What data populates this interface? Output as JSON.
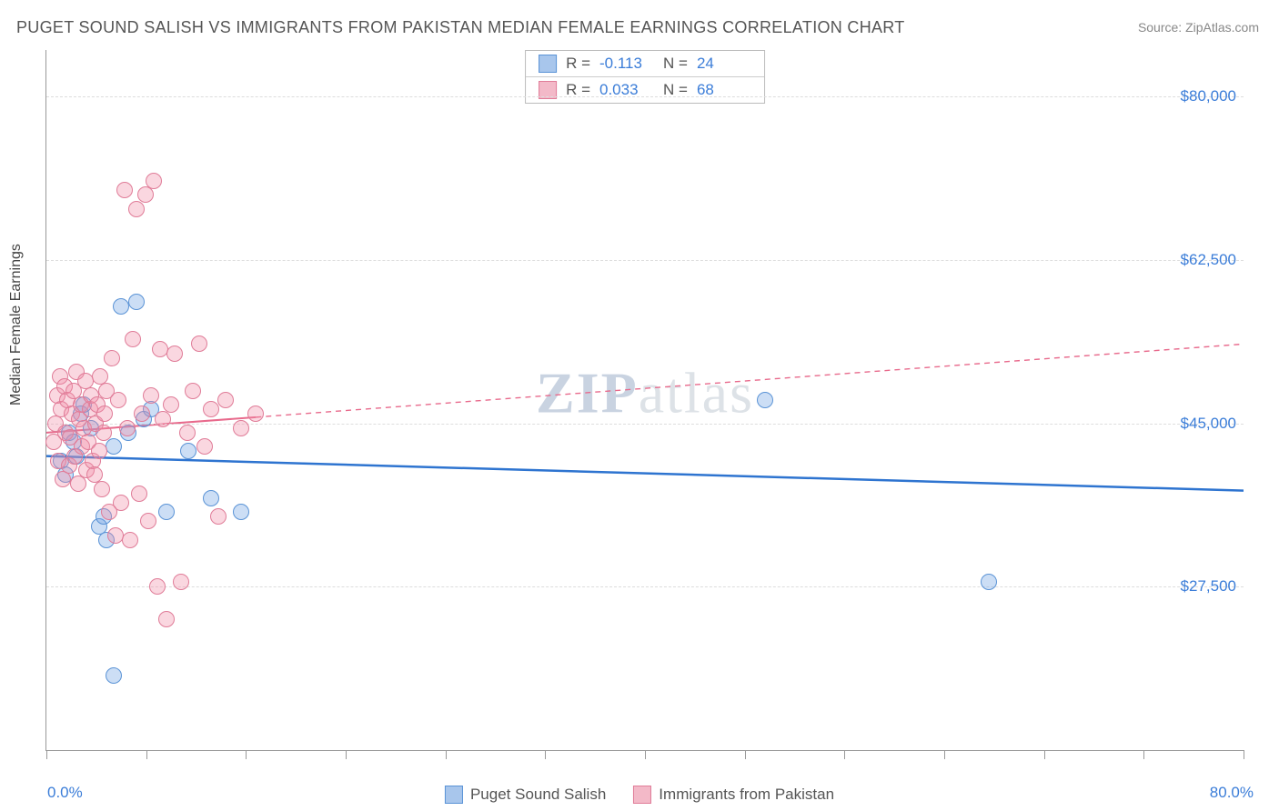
{
  "title": "PUGET SOUND SALISH VS IMMIGRANTS FROM PAKISTAN MEDIAN FEMALE EARNINGS CORRELATION CHART",
  "source": "Source: ZipAtlas.com",
  "watermark_a": "ZIP",
  "watermark_b": "atlas",
  "chart": {
    "type": "scatter",
    "y_axis_title": "Median Female Earnings",
    "x_min": 0.0,
    "x_max": 80.0,
    "x_label_min": "0.0%",
    "x_label_max": "80.0%",
    "x_ticks": [
      0,
      6.67,
      13.33,
      20,
      26.67,
      33.33,
      40,
      46.67,
      53.33,
      60,
      66.67,
      73.33,
      80
    ],
    "y_min": 10000,
    "y_max": 85000,
    "y_gridlines": [
      {
        "value": 27500,
        "label": "$27,500"
      },
      {
        "value": 45000,
        "label": "$45,000"
      },
      {
        "value": 62500,
        "label": "$62,500"
      },
      {
        "value": 80000,
        "label": "$80,000"
      }
    ],
    "marker_radius": 8,
    "marker_stroke_width": 1.2,
    "series": [
      {
        "name": "Puget Sound Salish",
        "fill": "rgba(110,160,225,0.35)",
        "stroke": "#5a93d6",
        "swatch_fill": "#a8c6ec",
        "swatch_border": "#5a93d6",
        "r_value": "-0.113",
        "n_value": "24",
        "trend": {
          "x1": 0,
          "y1": 41500,
          "x2": 80,
          "y2": 37800,
          "solid_until_x": 80,
          "color": "#2e74d0",
          "width": 2.5,
          "dash": ""
        },
        "points": [
          [
            1.0,
            41000
          ],
          [
            1.3,
            39500
          ],
          [
            1.5,
            44000
          ],
          [
            1.8,
            43000
          ],
          [
            2.0,
            41500
          ],
          [
            2.3,
            46000
          ],
          [
            2.5,
            47000
          ],
          [
            3.0,
            44500
          ],
          [
            3.5,
            34000
          ],
          [
            3.8,
            35000
          ],
          [
            4.0,
            32500
          ],
          [
            4.5,
            42500
          ],
          [
            5.0,
            57500
          ],
          [
            5.5,
            44000
          ],
          [
            6.0,
            58000
          ],
          [
            6.5,
            45500
          ],
          [
            7.0,
            46500
          ],
          [
            8.0,
            35500
          ],
          [
            9.5,
            42000
          ],
          [
            11.0,
            37000
          ],
          [
            13.0,
            35500
          ],
          [
            4.5,
            18000
          ],
          [
            48.0,
            47500
          ],
          [
            63.0,
            28000
          ]
        ]
      },
      {
        "name": "Immigrants from Pakistan",
        "fill": "rgba(240,140,165,0.35)",
        "stroke": "#e07c98",
        "swatch_fill": "#f3b9c8",
        "swatch_border": "#e07c98",
        "r_value": "0.033",
        "n_value": "68",
        "trend": {
          "x1": 0,
          "y1": 44000,
          "x2": 80,
          "y2": 53500,
          "solid_until_x": 14,
          "color": "#e86a8c",
          "width": 2,
          "dash": "6,5"
        },
        "points": [
          [
            0.5,
            43000
          ],
          [
            0.6,
            45000
          ],
          [
            0.7,
            48000
          ],
          [
            0.8,
            41000
          ],
          [
            0.9,
            50000
          ],
          [
            1.0,
            46500
          ],
          [
            1.1,
            39000
          ],
          [
            1.2,
            49000
          ],
          [
            1.3,
            44000
          ],
          [
            1.4,
            47500
          ],
          [
            1.5,
            40500
          ],
          [
            1.6,
            43500
          ],
          [
            1.7,
            46000
          ],
          [
            1.8,
            48500
          ],
          [
            1.9,
            41500
          ],
          [
            2.0,
            50500
          ],
          [
            2.1,
            38500
          ],
          [
            2.2,
            45500
          ],
          [
            2.3,
            47000
          ],
          [
            2.4,
            42500
          ],
          [
            2.5,
            44500
          ],
          [
            2.6,
            49500
          ],
          [
            2.7,
            40000
          ],
          [
            2.8,
            43000
          ],
          [
            2.9,
            46500
          ],
          [
            3.0,
            48000
          ],
          [
            3.1,
            41000
          ],
          [
            3.2,
            39500
          ],
          [
            3.3,
            45000
          ],
          [
            3.4,
            47000
          ],
          [
            3.5,
            42000
          ],
          [
            3.6,
            50000
          ],
          [
            3.7,
            38000
          ],
          [
            3.8,
            44000
          ],
          [
            3.9,
            46000
          ],
          [
            4.0,
            48500
          ],
          [
            4.2,
            35500
          ],
          [
            4.4,
            52000
          ],
          [
            4.6,
            33000
          ],
          [
            4.8,
            47500
          ],
          [
            5.0,
            36500
          ],
          [
            5.2,
            70000
          ],
          [
            5.4,
            44500
          ],
          [
            5.6,
            32500
          ],
          [
            5.8,
            54000
          ],
          [
            6.0,
            68000
          ],
          [
            6.2,
            37500
          ],
          [
            6.4,
            46000
          ],
          [
            6.6,
            69500
          ],
          [
            6.8,
            34500
          ],
          [
            7.0,
            48000
          ],
          [
            7.2,
            71000
          ],
          [
            7.4,
            27500
          ],
          [
            7.6,
            53000
          ],
          [
            7.8,
            45500
          ],
          [
            8.0,
            24000
          ],
          [
            8.3,
            47000
          ],
          [
            8.6,
            52500
          ],
          [
            9.0,
            28000
          ],
          [
            9.4,
            44000
          ],
          [
            9.8,
            48500
          ],
          [
            10.2,
            53500
          ],
          [
            10.6,
            42500
          ],
          [
            11.0,
            46500
          ],
          [
            11.5,
            35000
          ],
          [
            12.0,
            47500
          ],
          [
            13.0,
            44500
          ],
          [
            14.0,
            46000
          ]
        ]
      }
    ]
  },
  "legend": {
    "r_label": "R =",
    "n_label": "N ="
  },
  "colors": {
    "title_text": "#555",
    "source_text": "#888",
    "axis_text": "#444",
    "value_text": "#3b7dd8",
    "grid": "#ddd",
    "axis_line": "#999",
    "background": "#ffffff"
  }
}
